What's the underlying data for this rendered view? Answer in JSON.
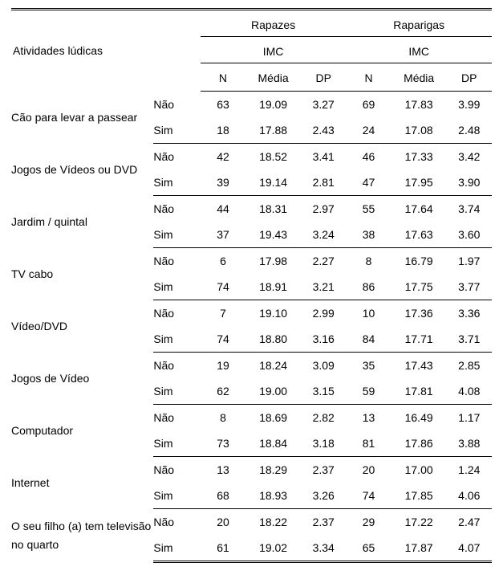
{
  "headers": {
    "activity": "Atividades lúdicas",
    "groups": [
      "Rapazes",
      "Raparigas"
    ],
    "imc": "IMC",
    "cols": {
      "n": "N",
      "media": "Média",
      "dp": "DP"
    },
    "resp_yes": "Sim",
    "resp_no": "Não"
  },
  "rows": [
    {
      "label": "Cão para levar a passear",
      "no": {
        "rN": "63",
        "rM": "19.09",
        "rDP": "3.27",
        "gN": "69",
        "gM": "17.83",
        "gDP": "3.99"
      },
      "yes": {
        "rN": "18",
        "rM": "17.88",
        "rDP": "2.43",
        "gN": "24",
        "gM": "17.08",
        "gDP": "2.48"
      }
    },
    {
      "label": "Jogos de Vídeos ou DVD",
      "no": {
        "rN": "42",
        "rM": "18.52",
        "rDP": "3.41",
        "gN": "46",
        "gM": "17.33",
        "gDP": "3.42"
      },
      "yes": {
        "rN": "39",
        "rM": "19.14",
        "rDP": "2.81",
        "gN": "47",
        "gM": "17.95",
        "gDP": "3.90"
      }
    },
    {
      "label": "Jardim / quintal",
      "no": {
        "rN": "44",
        "rM": "18.31",
        "rDP": "2.97",
        "gN": "55",
        "gM": "17.64",
        "gDP": "3.74"
      },
      "yes": {
        "rN": "37",
        "rM": "19.43",
        "rDP": "3.24",
        "gN": "38",
        "gM": "17.63",
        "gDP": "3.60"
      }
    },
    {
      "label": "TV cabo",
      "no": {
        "rN": "6",
        "rM": "17.98",
        "rDP": "2.27",
        "gN": "8",
        "gM": "16.79",
        "gDP": "1.97"
      },
      "yes": {
        "rN": "74",
        "rM": "18.91",
        "rDP": "3.21",
        "gN": "86",
        "gM": "17.75",
        "gDP": "3.77"
      }
    },
    {
      "label": "Vídeo/DVD",
      "no": {
        "rN": "7",
        "rM": "19.10",
        "rDP": "2.99",
        "gN": "10",
        "gM": "17.36",
        "gDP": "3.36"
      },
      "yes": {
        "rN": "74",
        "rM": "18.80",
        "rDP": "3.16",
        "gN": "84",
        "gM": "17.71",
        "gDP": "3.71"
      }
    },
    {
      "label": "Jogos de Vídeo",
      "no": {
        "rN": "19",
        "rM": "18.24",
        "rDP": "3.09",
        "gN": "35",
        "gM": "17.43",
        "gDP": "2.85"
      },
      "yes": {
        "rN": "62",
        "rM": "19.00",
        "rDP": "3.15",
        "gN": "59",
        "gM": "17.81",
        "gDP": "4.08"
      }
    },
    {
      "label": "Computador",
      "no": {
        "rN": "8",
        "rM": "18.69",
        "rDP": "2.82",
        "gN": "13",
        "gM": "16.49",
        "gDP": "1.17"
      },
      "yes": {
        "rN": "73",
        "rM": "18.84",
        "rDP": "3.18",
        "gN": "81",
        "gM": "17.86",
        "gDP": "3.88"
      }
    },
    {
      "label": "Internet",
      "no": {
        "rN": "13",
        "rM": "18.29",
        "rDP": "2.37",
        "gN": "20",
        "gM": "17.00",
        "gDP": "1.24"
      },
      "yes": {
        "rN": "68",
        "rM": "18.93",
        "rDP": "3.26",
        "gN": "74",
        "gM": "17.85",
        "gDP": "4.06"
      }
    },
    {
      "label": "O seu filho (a) tem televisão no quarto",
      "no": {
        "rN": "20",
        "rM": "18.22",
        "rDP": "2.37",
        "gN": "29",
        "gM": "17.22",
        "gDP": "2.47"
      },
      "yes": {
        "rN": "61",
        "rM": "19.02",
        "rDP": "3.34",
        "gN": "65",
        "gM": "17.87",
        "gDP": "4.07"
      }
    }
  ]
}
